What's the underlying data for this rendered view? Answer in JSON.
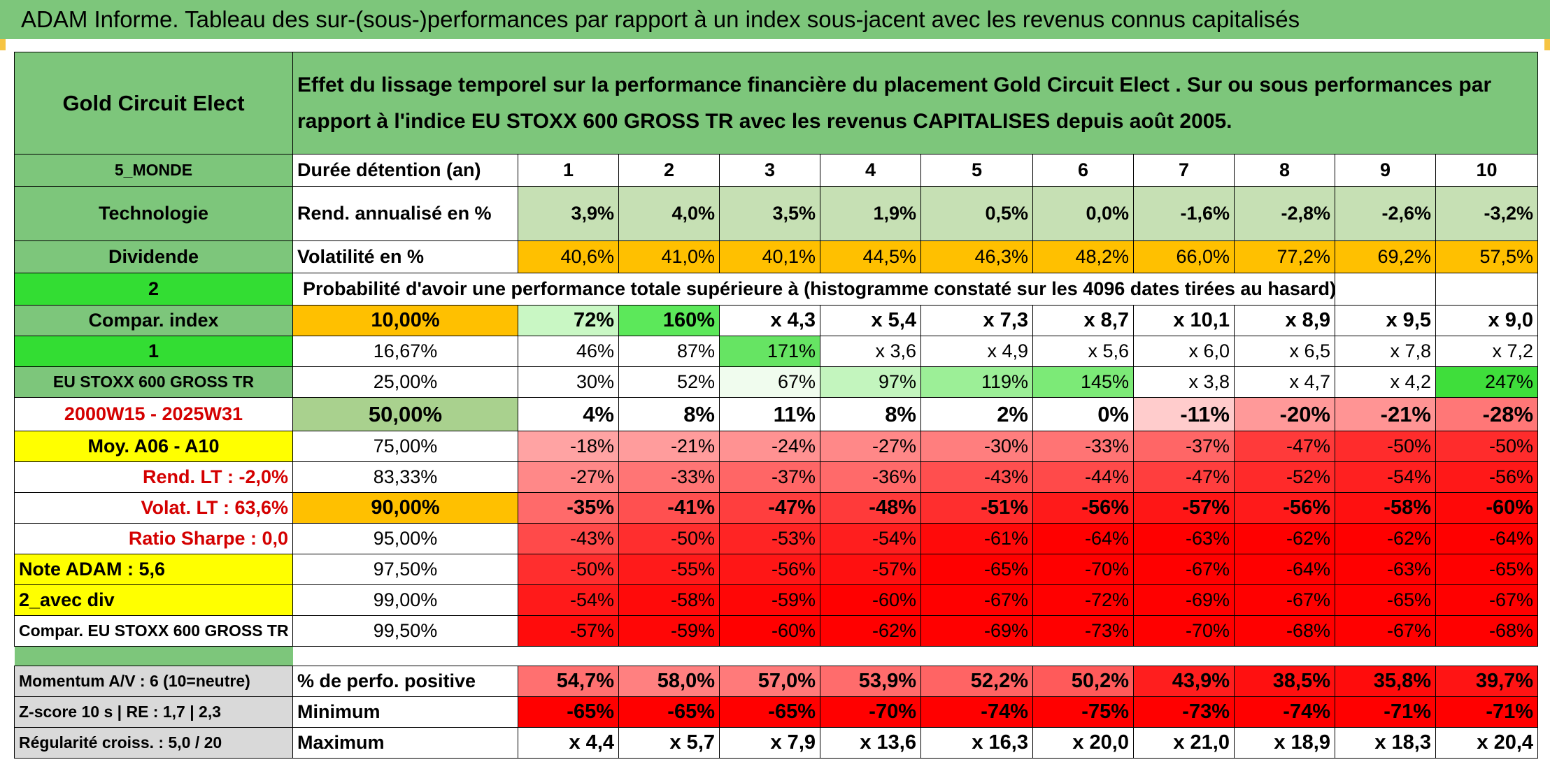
{
  "title": "ADAM Informe. Tableau des sur-(sous-)performances par rapport à un index sous-jacent avec les revenus connus capitalisés",
  "header": {
    "fund_name": "Gold Circuit Elect",
    "description": "Effet du lissage temporel sur la performance financière du placement Gold Circuit Elect . Sur ou sous performances par rapport à l'indice EU STOXX 600 GROSS TR avec les revenus CAPITALISES depuis août 2005."
  },
  "left_labels": {
    "region": "5_MONDE",
    "sector": "Technologie",
    "type": "Dividende",
    "num2": "2",
    "compar_index": "Compar. index",
    "num1": "1",
    "index_name": "EU STOXX 600 GROSS TR",
    "period": "2000W15 - 2025W31",
    "moy": "Moy. A06 - A10",
    "rend_lt": "Rend. LT :   -2,0%",
    "volat_lt": "Volat. LT :   63,6%",
    "sharpe": "Ratio Sharpe :    0,0",
    "note": "Note ADAM : 5,6",
    "avec_div": "2_avec div",
    "compar_full": "Compar. EU STOXX 600 GROSS TR",
    "momentum": "Momentum A/V : 6 (10=neutre)",
    "zscore": "Z-score 10 s | RE : 1,7 | 2,3",
    "regularite": "Régularité croiss. : 5,0 / 20"
  },
  "row_labels": {
    "duree": "Durée détention (an)",
    "rend": "Rend. annualisé en %",
    "vol": "Volatilité en %",
    "prob": "Probabilité d'avoir une performance totale supérieure à (histogramme constaté sur les 4096 dates tirées au hasard)",
    "pct_pos": "% de perfo. positive",
    "min": "Minimum",
    "max": "Maximum"
  },
  "years": [
    "1",
    "2",
    "3",
    "4",
    "5",
    "6",
    "7",
    "8",
    "9",
    "10"
  ],
  "rend": [
    "3,9%",
    "4,0%",
    "3,5%",
    "1,9%",
    "0,5%",
    "0,0%",
    "-1,6%",
    "-2,8%",
    "-2,6%",
    "-3,2%"
  ],
  "vol": [
    "40,6%",
    "41,0%",
    "40,1%",
    "44,5%",
    "46,3%",
    "48,2%",
    "66,0%",
    "77,2%",
    "69,2%",
    "57,5%"
  ],
  "percentiles": [
    {
      "p": "10,00%",
      "vals": [
        "72%",
        "160%",
        "x 4,3",
        "x 5,4",
        "x 7,3",
        "x 8,7",
        "x 10,1",
        "x 8,9",
        "x 9,5",
        "x 9,0"
      ]
    },
    {
      "p": "16,67%",
      "vals": [
        "46%",
        "87%",
        "171%",
        "x 3,6",
        "x 4,9",
        "x 5,6",
        "x 6,0",
        "x 6,5",
        "x 7,8",
        "x 7,2"
      ]
    },
    {
      "p": "25,00%",
      "vals": [
        "30%",
        "52%",
        "67%",
        "97%",
        "119%",
        "145%",
        "x 3,8",
        "x 4,7",
        "x 4,2",
        "247%"
      ]
    },
    {
      "p": "50,00%",
      "vals": [
        "4%",
        "8%",
        "11%",
        "8%",
        "2%",
        "0%",
        "-11%",
        "-20%",
        "-21%",
        "-28%"
      ]
    },
    {
      "p": "75,00%",
      "vals": [
        "-18%",
        "-21%",
        "-24%",
        "-27%",
        "-30%",
        "-33%",
        "-37%",
        "-47%",
        "-50%",
        "-50%"
      ]
    },
    {
      "p": "83,33%",
      "vals": [
        "-27%",
        "-33%",
        "-37%",
        "-36%",
        "-43%",
        "-44%",
        "-47%",
        "-52%",
        "-54%",
        "-56%"
      ]
    },
    {
      "p": "90,00%",
      "vals": [
        "-35%",
        "-41%",
        "-47%",
        "-48%",
        "-51%",
        "-56%",
        "-57%",
        "-56%",
        "-58%",
        "-60%"
      ]
    },
    {
      "p": "95,00%",
      "vals": [
        "-43%",
        "-50%",
        "-53%",
        "-54%",
        "-61%",
        "-64%",
        "-63%",
        "-62%",
        "-62%",
        "-64%"
      ]
    },
    {
      "p": "97,50%",
      "vals": [
        "-50%",
        "-55%",
        "-56%",
        "-57%",
        "-65%",
        "-70%",
        "-67%",
        "-64%",
        "-63%",
        "-65%"
      ]
    },
    {
      "p": "99,00%",
      "vals": [
        "-54%",
        "-58%",
        "-59%",
        "-60%",
        "-67%",
        "-72%",
        "-69%",
        "-67%",
        "-65%",
        "-67%"
      ]
    },
    {
      "p": "99,50%",
      "vals": [
        "-57%",
        "-59%",
        "-60%",
        "-62%",
        "-69%",
        "-73%",
        "-70%",
        "-68%",
        "-67%",
        "-68%"
      ]
    }
  ],
  "pct_pos": [
    "54,7%",
    "58,0%",
    "57,0%",
    "53,9%",
    "52,2%",
    "50,2%",
    "43,9%",
    "38,5%",
    "35,8%",
    "39,7%"
  ],
  "minimum": [
    "-65%",
    "-65%",
    "-65%",
    "-70%",
    "-74%",
    "-75%",
    "-73%",
    "-74%",
    "-71%",
    "-71%"
  ],
  "maximum": [
    "x 4,4",
    "x 5,7",
    "x 7,9",
    "x 13,6",
    "x 16,3",
    "x 20,0",
    "x 21,0",
    "x 18,9",
    "x 18,3",
    "x 20,4"
  ],
  "colors": {
    "header_green": "#7dc67b",
    "bright_green": "#33dd33",
    "yellow": "#ffff00",
    "orange": "#ffc000",
    "rend_bg": [
      "#c6e0b4",
      "#c6e0b4",
      "#c6e0b4",
      "#c6e0b4",
      "#c6e0b4",
      "#c6e0b4",
      "#c6e0b4",
      "#c6e0b4",
      "#c6e0b4",
      "#c6e0b4"
    ],
    "vol_bg": [
      "#ffc000",
      "#ffc000",
      "#ffc000",
      "#ffc000",
      "#ffc000",
      "#ffc000",
      "#ffc000",
      "#ffc000",
      "#ffc000",
      "#ffc000"
    ],
    "pct_bg": [
      [
        "#c9f7c4",
        "#5ce85a",
        "#ffffff",
        "#ffffff",
        "#ffffff",
        "#ffffff",
        "#ffffff",
        "#ffffff",
        "#ffffff",
        "#ffffff"
      ],
      [
        "#ffffff",
        "#ffffff",
        "#66e463",
        "#ffffff",
        "#ffffff",
        "#ffffff",
        "#ffffff",
        "#ffffff",
        "#ffffff",
        "#ffffff"
      ],
      [
        "#ffffff",
        "#ffffff",
        "#f0fcee",
        "#c3f5be",
        "#9cef97",
        "#7cea77",
        "#ffffff",
        "#ffffff",
        "#ffffff",
        "#3fde3b"
      ],
      [
        "#ffffff",
        "#ffffff",
        "#ffffff",
        "#ffffff",
        "#ffffff",
        "#ffffff",
        "#ffcccc",
        "#ff9999",
        "#ff9494",
        "#ff7777"
      ],
      [
        "#ffa3a3",
        "#ff9c9c",
        "#ff9292",
        "#ff8888",
        "#ff7e7e",
        "#ff7474",
        "#ff6666",
        "#ff3a3a",
        "#ff2c2c",
        "#ff2c2c"
      ],
      [
        "#ff8888",
        "#ff7575",
        "#ff6666",
        "#ff6a6a",
        "#ff4f4f",
        "#ff4a4a",
        "#ff3e3e",
        "#ff2a2a",
        "#ff2020",
        "#ff1818"
      ],
      [
        "#ff6a6a",
        "#ff5050",
        "#ff3e3e",
        "#ff3a3a",
        "#ff2e2e",
        "#ff1a1a",
        "#ff1616",
        "#ff1a1a",
        "#ff1010",
        "#ff0808"
      ],
      [
        "#ff4a4a",
        "#ff2e2e",
        "#ff2424",
        "#ff1e1e",
        "#ff0a0a",
        "#ff0000",
        "#ff0000",
        "#ff0000",
        "#ff0000",
        "#ff0000"
      ],
      [
        "#ff2e2e",
        "#ff1a1a",
        "#ff1616",
        "#ff1010",
        "#ff0000",
        "#ff0000",
        "#ff0000",
        "#ff0000",
        "#ff0000",
        "#ff0000"
      ],
      [
        "#ff1a1a",
        "#ff0a0a",
        "#ff0606",
        "#ff0000",
        "#ff0000",
        "#ff0000",
        "#ff0000",
        "#ff0000",
        "#ff0000",
        "#ff0000"
      ],
      [
        "#ff0c0c",
        "#ff0606",
        "#ff0000",
        "#ff0000",
        "#ff0000",
        "#ff0000",
        "#ff0000",
        "#ff0000",
        "#ff0000",
        "#ff0000"
      ]
    ],
    "pos_bg": [
      "#ff7070",
      "#ff8080",
      "#ff7a7a",
      "#ff6c6c",
      "#ff6464",
      "#ff5a5a",
      "#ff1e1e",
      "#ff1010",
      "#ff0c0c",
      "#ff1414"
    ],
    "min_bg": [
      "#ff0000",
      "#ff0000",
      "#ff0000",
      "#ff0000",
      "#ff0000",
      "#ff0000",
      "#ff0000",
      "#ff0000",
      "#ff0000",
      "#ff0000"
    ]
  }
}
